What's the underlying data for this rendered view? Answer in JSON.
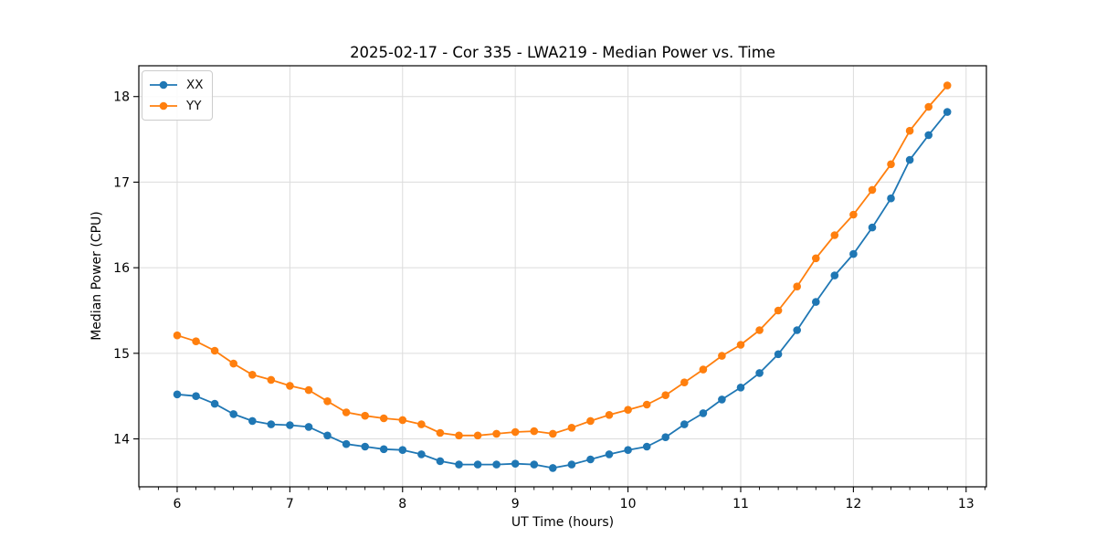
{
  "chart_data": {
    "type": "line",
    "title": "2025-02-17 - Cor 335 - LWA219 - Median Power vs. Time",
    "xlabel": "UT Time (hours)",
    "ylabel": "Median Power (CPU)",
    "xlim": [
      5.66,
      13.18
    ],
    "ylim": [
      13.44,
      18.36
    ],
    "xticks": [
      6,
      7,
      8,
      9,
      10,
      11,
      12,
      13
    ],
    "yticks": [
      14,
      15,
      16,
      17,
      18
    ],
    "x_minor_step": 0.16667,
    "grid": true,
    "grid_color": "#dcdcdc",
    "legend_position": "upper left",
    "marker": "circle",
    "x": [
      6.0,
      6.167,
      6.333,
      6.5,
      6.667,
      6.833,
      7.0,
      7.167,
      7.333,
      7.5,
      7.667,
      7.833,
      8.0,
      8.167,
      8.333,
      8.5,
      8.667,
      8.833,
      9.0,
      9.167,
      9.333,
      9.5,
      9.667,
      9.833,
      10.0,
      10.167,
      10.333,
      10.5,
      10.667,
      10.833,
      11.0,
      11.167,
      11.333,
      11.5,
      11.667,
      11.833,
      12.0,
      12.167,
      12.333,
      12.5,
      12.667,
      12.833
    ],
    "series": [
      {
        "name": "XX",
        "color": "#1f77b4",
        "values": [
          14.52,
          14.5,
          14.41,
          14.29,
          14.21,
          14.17,
          14.16,
          14.14,
          14.04,
          13.94,
          13.91,
          13.88,
          13.87,
          13.82,
          13.74,
          13.7,
          13.7,
          13.7,
          13.71,
          13.7,
          13.66,
          13.7,
          13.76,
          13.82,
          13.87,
          13.91,
          14.02,
          14.17,
          14.3,
          14.46,
          14.6,
          14.77,
          14.99,
          15.27,
          15.6,
          15.91,
          16.16,
          16.47,
          16.81,
          17.26,
          17.55,
          17.82
        ]
      },
      {
        "name": "YY",
        "color": "#ff7f0e",
        "values": [
          15.21,
          15.14,
          15.03,
          14.88,
          14.75,
          14.69,
          14.62,
          14.57,
          14.44,
          14.31,
          14.27,
          14.24,
          14.22,
          14.17,
          14.07,
          14.04,
          14.04,
          14.06,
          14.08,
          14.09,
          14.06,
          14.13,
          14.21,
          14.28,
          14.34,
          14.4,
          14.51,
          14.66,
          14.81,
          14.97,
          15.1,
          15.27,
          15.5,
          15.78,
          16.11,
          16.38,
          16.62,
          16.91,
          17.21,
          17.6,
          17.88,
          18.13
        ]
      }
    ]
  }
}
